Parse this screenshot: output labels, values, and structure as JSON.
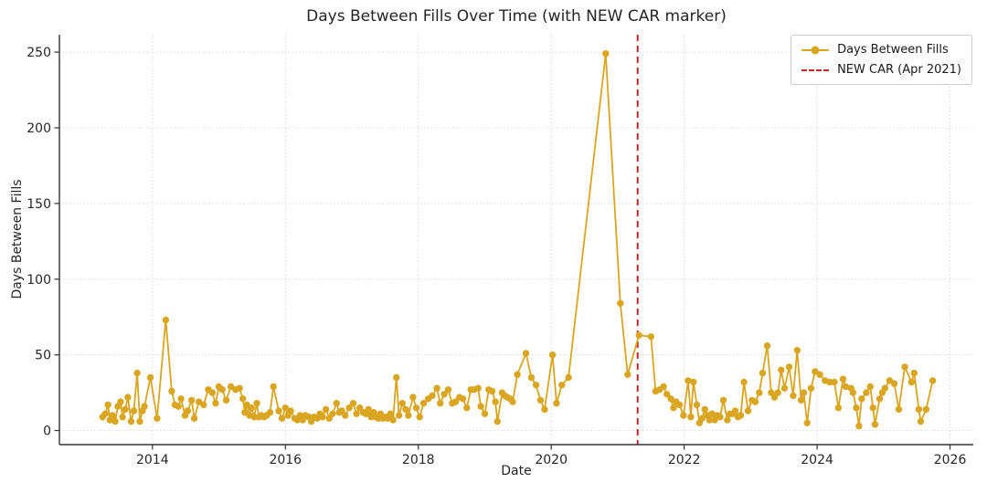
{
  "chart_data": {
    "type": "line",
    "title": "Days Between Fills Over Time (with NEW CAR marker)",
    "xlabel": "Date",
    "ylabel": "Days Between Fills",
    "x_ticks": [
      2014,
      2016,
      2018,
      2020,
      2022,
      2024,
      2026
    ],
    "y_ticks": [
      0,
      50,
      100,
      150,
      200,
      250
    ],
    "xlim": [
      2012.6,
      2026.35
    ],
    "ylim": [
      -9.3,
      261.5
    ],
    "grid": true,
    "grid_style": "dotted",
    "legend_position": "upper right",
    "series": [
      {
        "name": "Days Between Fills",
        "color": "#DAA520",
        "marker": "circle",
        "points": [
          [
            2013.25,
            9
          ],
          [
            2013.29,
            11
          ],
          [
            2013.33,
            17
          ],
          [
            2013.36,
            7
          ],
          [
            2013.4,
            10
          ],
          [
            2013.44,
            6
          ],
          [
            2013.48,
            16
          ],
          [
            2013.52,
            19
          ],
          [
            2013.55,
            9
          ],
          [
            2013.59,
            14
          ],
          [
            2013.63,
            22
          ],
          [
            2013.68,
            6
          ],
          [
            2013.72,
            13
          ],
          [
            2013.77,
            38
          ],
          [
            2013.81,
            6
          ],
          [
            2013.85,
            13
          ],
          [
            2013.88,
            16
          ],
          [
            2013.97,
            35
          ],
          [
            2014.07,
            8
          ],
          [
            2014.2,
            73
          ],
          [
            2014.29,
            26
          ],
          [
            2014.34,
            17
          ],
          [
            2014.39,
            16
          ],
          [
            2014.43,
            21
          ],
          [
            2014.49,
            10
          ],
          [
            2014.53,
            13
          ],
          [
            2014.59,
            20
          ],
          [
            2014.63,
            8
          ],
          [
            2014.7,
            19
          ],
          [
            2014.77,
            17
          ],
          [
            2014.84,
            27
          ],
          [
            2014.9,
            25
          ],
          [
            2014.95,
            18
          ],
          [
            2015.0,
            29
          ],
          [
            2015.05,
            27
          ],
          [
            2015.11,
            20
          ],
          [
            2015.18,
            29
          ],
          [
            2015.25,
            27
          ],
          [
            2015.31,
            28
          ],
          [
            2015.36,
            21
          ],
          [
            2015.39,
            12
          ],
          [
            2015.42,
            17
          ],
          [
            2015.46,
            10
          ],
          [
            2015.49,
            15
          ],
          [
            2015.53,
            9
          ],
          [
            2015.57,
            18
          ],
          [
            2015.6,
            9
          ],
          [
            2015.64,
            10
          ],
          [
            2015.68,
            9
          ],
          [
            2015.72,
            10
          ],
          [
            2015.77,
            12
          ],
          [
            2015.82,
            29
          ],
          [
            2015.9,
            13
          ],
          [
            2015.95,
            8
          ],
          [
            2016.0,
            15
          ],
          [
            2016.04,
            10
          ],
          [
            2016.08,
            13
          ],
          [
            2016.14,
            8
          ],
          [
            2016.18,
            7
          ],
          [
            2016.22,
            10
          ],
          [
            2016.26,
            7
          ],
          [
            2016.3,
            10
          ],
          [
            2016.35,
            9
          ],
          [
            2016.39,
            6
          ],
          [
            2016.43,
            9
          ],
          [
            2016.48,
            8
          ],
          [
            2016.52,
            11
          ],
          [
            2016.56,
            9
          ],
          [
            2016.61,
            14
          ],
          [
            2016.66,
            8
          ],
          [
            2016.71,
            11
          ],
          [
            2016.77,
            18
          ],
          [
            2016.81,
            12
          ],
          [
            2016.85,
            13
          ],
          [
            2016.9,
            10
          ],
          [
            2016.96,
            15
          ],
          [
            2017.02,
            18
          ],
          [
            2017.07,
            11
          ],
          [
            2017.12,
            15
          ],
          [
            2017.17,
            12
          ],
          [
            2017.21,
            11
          ],
          [
            2017.25,
            14
          ],
          [
            2017.29,
            9
          ],
          [
            2017.33,
            12
          ],
          [
            2017.36,
            9
          ],
          [
            2017.4,
            8
          ],
          [
            2017.43,
            11
          ],
          [
            2017.47,
            8
          ],
          [
            2017.51,
            9
          ],
          [
            2017.54,
            8
          ],
          [
            2017.58,
            11
          ],
          [
            2017.62,
            7
          ],
          [
            2017.67,
            35
          ],
          [
            2017.71,
            10
          ],
          [
            2017.76,
            18
          ],
          [
            2017.81,
            14
          ],
          [
            2017.85,
            10
          ],
          [
            2017.92,
            22
          ],
          [
            2017.97,
            15
          ],
          [
            2018.02,
            9
          ],
          [
            2018.08,
            18
          ],
          [
            2018.15,
            21
          ],
          [
            2018.21,
            23
          ],
          [
            2018.28,
            28
          ],
          [
            2018.33,
            18
          ],
          [
            2018.39,
            24
          ],
          [
            2018.45,
            27
          ],
          [
            2018.51,
            18
          ],
          [
            2018.56,
            19
          ],
          [
            2018.62,
            22
          ],
          [
            2018.67,
            21
          ],
          [
            2018.73,
            15
          ],
          [
            2018.79,
            27
          ],
          [
            2018.84,
            27
          ],
          [
            2018.9,
            28
          ],
          [
            2018.94,
            16
          ],
          [
            2019.0,
            11
          ],
          [
            2019.06,
            27
          ],
          [
            2019.11,
            26
          ],
          [
            2019.16,
            19
          ],
          [
            2019.19,
            6
          ],
          [
            2019.26,
            25
          ],
          [
            2019.3,
            23
          ],
          [
            2019.34,
            22
          ],
          [
            2019.38,
            21
          ],
          [
            2019.42,
            19
          ],
          [
            2019.49,
            37
          ],
          [
            2019.62,
            51
          ],
          [
            2019.7,
            35
          ],
          [
            2019.77,
            30
          ],
          [
            2019.84,
            20
          ],
          [
            2019.9,
            14
          ],
          [
            2020.02,
            50
          ],
          [
            2020.08,
            18
          ],
          [
            2020.16,
            30
          ],
          [
            2020.26,
            35
          ],
          [
            2020.82,
            249
          ],
          [
            2021.04,
            84
          ],
          [
            2021.15,
            37
          ],
          [
            2021.32,
            63
          ],
          [
            2021.5,
            62
          ],
          [
            2021.57,
            26
          ],
          [
            2021.63,
            27
          ],
          [
            2021.69,
            29
          ],
          [
            2021.74,
            24
          ],
          [
            2021.8,
            21
          ],
          [
            2021.84,
            15
          ],
          [
            2021.88,
            19
          ],
          [
            2021.93,
            17
          ],
          [
            2021.99,
            10
          ],
          [
            2022.06,
            33
          ],
          [
            2022.1,
            9
          ],
          [
            2022.14,
            32
          ],
          [
            2022.19,
            17
          ],
          [
            2022.23,
            5
          ],
          [
            2022.27,
            8
          ],
          [
            2022.31,
            14
          ],
          [
            2022.35,
            10
          ],
          [
            2022.38,
            7
          ],
          [
            2022.42,
            11
          ],
          [
            2022.46,
            7
          ],
          [
            2022.5,
            10
          ],
          [
            2022.54,
            9
          ],
          [
            2022.59,
            20
          ],
          [
            2022.65,
            7
          ],
          [
            2022.69,
            11
          ],
          [
            2022.73,
            11
          ],
          [
            2022.77,
            13
          ],
          [
            2022.81,
            9
          ],
          [
            2022.85,
            10
          ],
          [
            2022.9,
            32
          ],
          [
            2022.96,
            13
          ],
          [
            2023.02,
            20
          ],
          [
            2023.07,
            19
          ],
          [
            2023.13,
            25
          ],
          [
            2023.18,
            38
          ],
          [
            2023.25,
            56
          ],
          [
            2023.31,
            25
          ],
          [
            2023.36,
            22
          ],
          [
            2023.41,
            25
          ],
          [
            2023.46,
            40
          ],
          [
            2023.51,
            28
          ],
          [
            2023.58,
            42
          ],
          [
            2023.64,
            23
          ],
          [
            2023.7,
            53
          ],
          [
            2023.76,
            20
          ],
          [
            2023.8,
            25
          ],
          [
            2023.85,
            5
          ],
          [
            2023.91,
            28
          ],
          [
            2023.97,
            39
          ],
          [
            2024.04,
            37
          ],
          [
            2024.12,
            33
          ],
          [
            2024.19,
            32
          ],
          [
            2024.26,
            32
          ],
          [
            2024.32,
            15
          ],
          [
            2024.39,
            34
          ],
          [
            2024.43,
            29
          ],
          [
            2024.51,
            28
          ],
          [
            2024.54,
            25
          ],
          [
            2024.59,
            15
          ],
          [
            2024.63,
            3
          ],
          [
            2024.67,
            21
          ],
          [
            2024.74,
            25
          ],
          [
            2024.8,
            29
          ],
          [
            2024.84,
            15
          ],
          [
            2024.87,
            4
          ],
          [
            2024.94,
            21
          ],
          [
            2024.98,
            25
          ],
          [
            2025.02,
            28
          ],
          [
            2025.09,
            33
          ],
          [
            2025.16,
            31
          ],
          [
            2025.23,
            14
          ],
          [
            2025.32,
            42
          ],
          [
            2025.42,
            32
          ],
          [
            2025.46,
            38
          ],
          [
            2025.53,
            14
          ],
          [
            2025.56,
            6
          ],
          [
            2025.64,
            14
          ],
          [
            2025.74,
            33
          ]
        ]
      }
    ],
    "vline": {
      "label": "NEW CAR (Apr 2021)",
      "x": 2021.3,
      "color": "#C62828",
      "style": "dashed"
    },
    "colors": {
      "line": "#DAA520",
      "vline": "#C62828",
      "grid": "#d9d9d9",
      "axis": "#333333",
      "text": "#262626"
    }
  }
}
